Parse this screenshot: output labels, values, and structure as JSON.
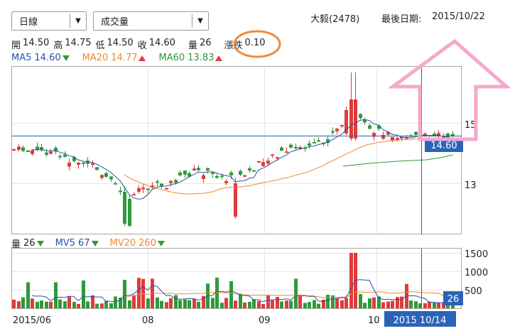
{
  "controls": {
    "period_select": "日線",
    "indicator_select": "成交量"
  },
  "header": {
    "stock": "大毅(2478)",
    "last_date_label": "最後日期:",
    "last_date": "2015/10/22"
  },
  "ohlc": {
    "open_label": "開",
    "open": "14.50",
    "high_label": "高",
    "high": "14.75",
    "low_label": "低",
    "low": "14.50",
    "close_label": "收",
    "close": "14.60",
    "volume_label": "量",
    "volume": "26",
    "change_label": "漲跌",
    "change": "0.10"
  },
  "ma": {
    "ma5_label": "MA5",
    "ma5": "14.60",
    "ma20_label": "MA20",
    "ma20": "14.77",
    "ma60_label": "MA60",
    "ma60": "13.83"
  },
  "vol_indicators": {
    "vol_label": "量",
    "vol": "26",
    "mv5_label": "MV5",
    "mv5": "67",
    "mv20_label": "MV20",
    "mv20": "260"
  },
  "colors": {
    "up": "#e03a3a",
    "down": "#2e9a3a",
    "ma5": "#2a52a8",
    "ma20": "#ee8a2c",
    "ma60": "#2e9a3a",
    "highlight": "#2a64b8",
    "circle": "#f08a3c",
    "arrow": "#f6a8cc"
  },
  "chart_data": {
    "type": "candlestick",
    "price_ticks": [
      "15",
      "13"
    ],
    "volume_ticks": [
      "1500",
      "1000",
      "500"
    ],
    "x_ticks": [
      "2015/06",
      "08",
      "09",
      "10"
    ],
    "current_price_label": "14.60",
    "current_volume_label": "26",
    "crosshair_date": "2015 10/14"
  }
}
